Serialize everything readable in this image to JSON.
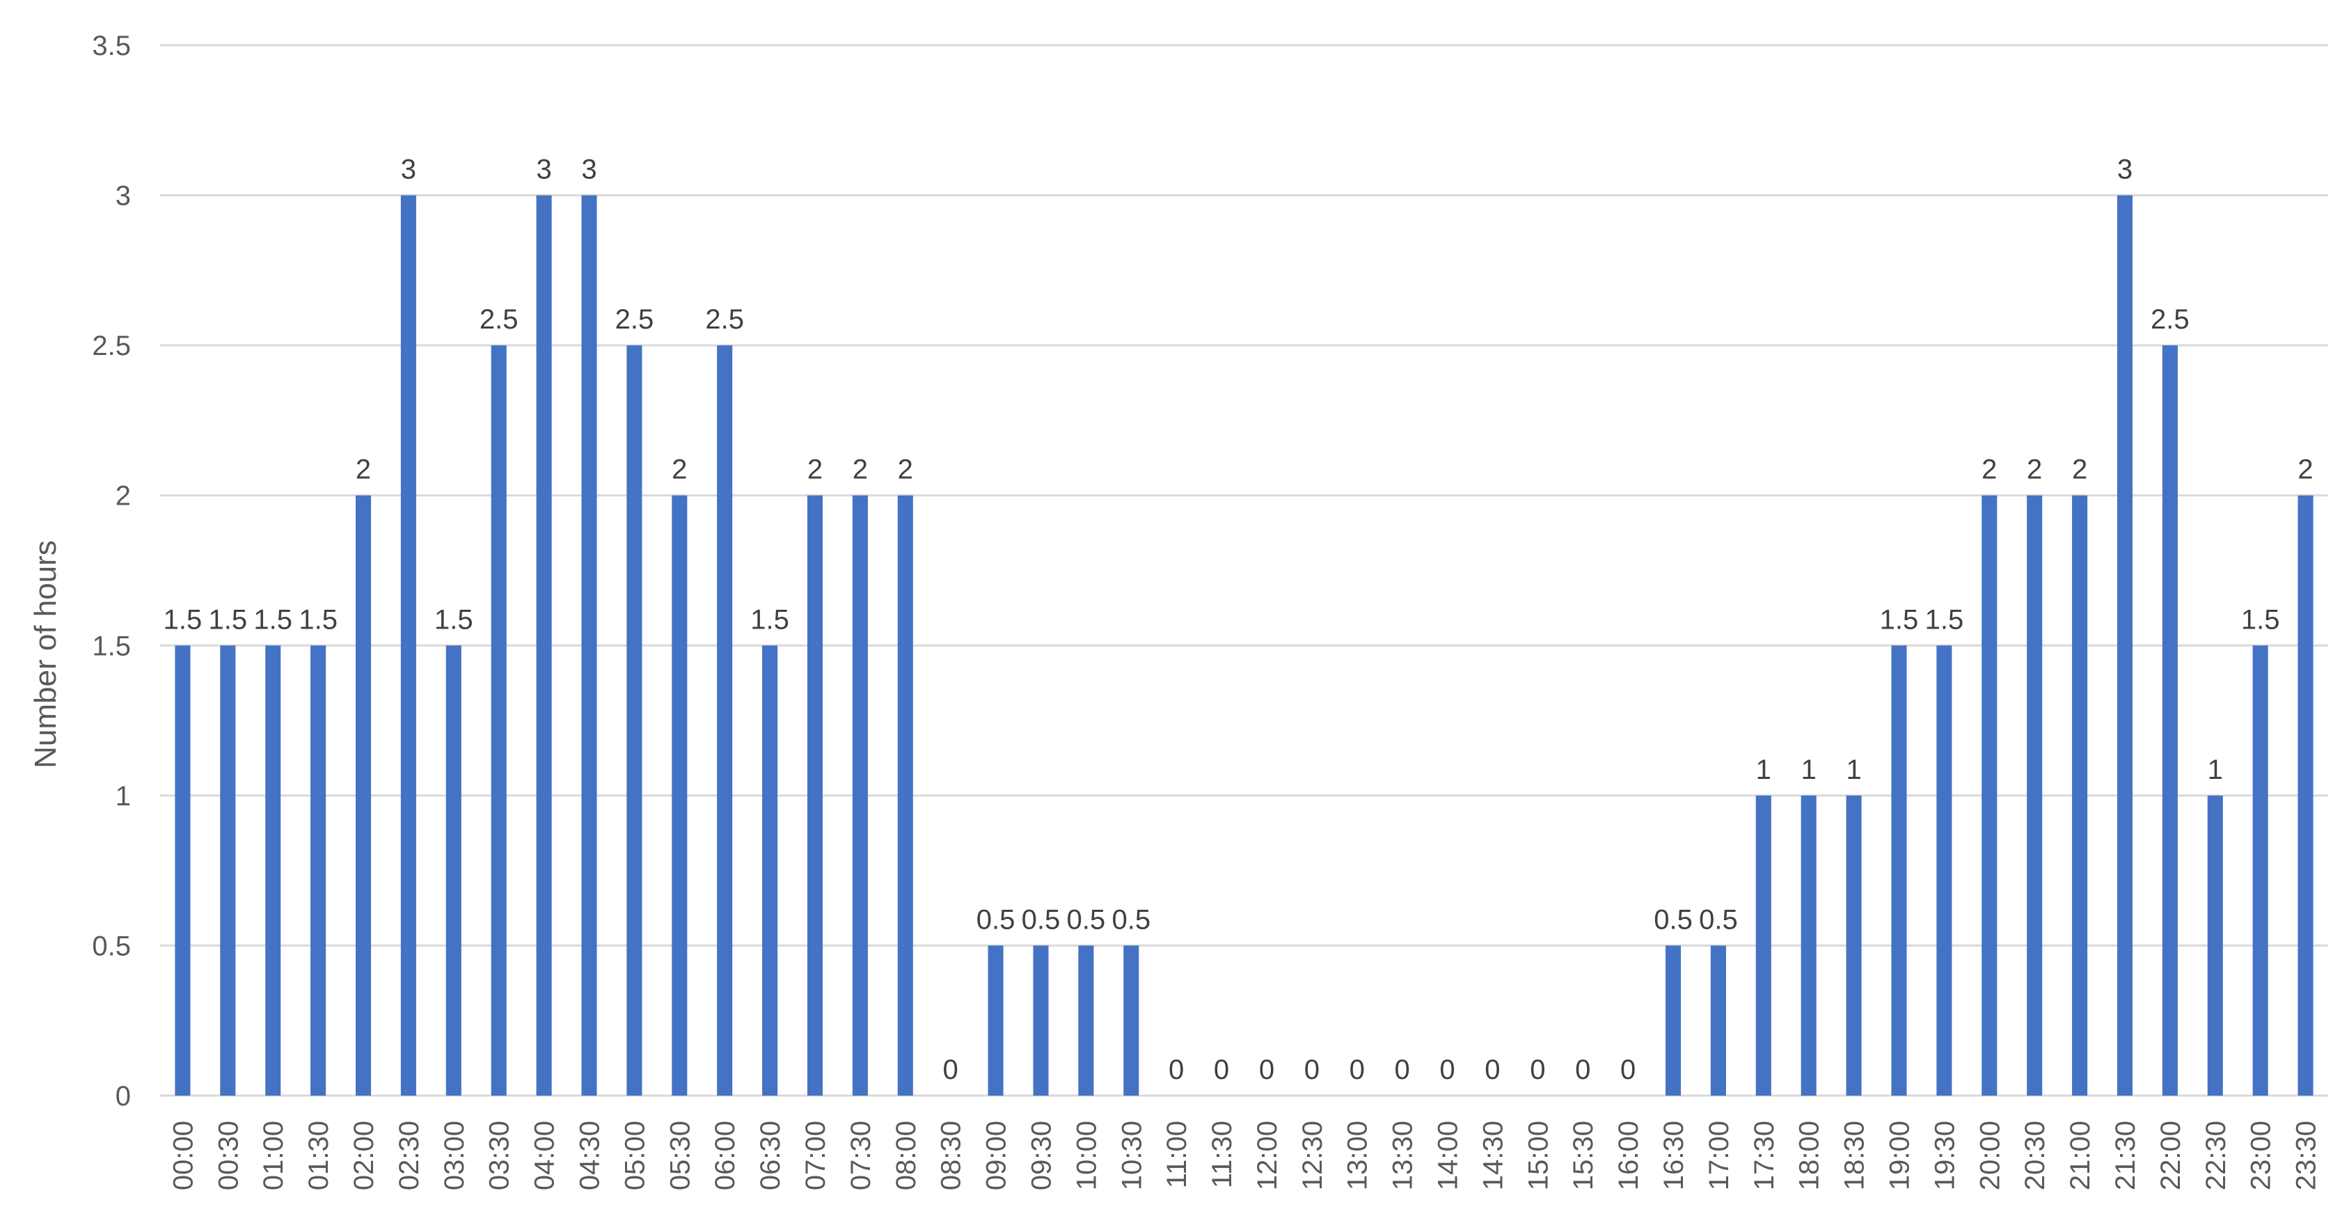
{
  "chart_data": {
    "type": "bar",
    "title": "",
    "xlabel": "",
    "ylabel": "Number of hours",
    "ylim": [
      0,
      3.5
    ],
    "yticks": [
      "0",
      "0.5",
      "1",
      "1.5",
      "2",
      "2.5",
      "3",
      "3.5"
    ],
    "grid": true,
    "legend": "none",
    "bar_color": "#4472C4",
    "categories": [
      "00:00",
      "00:30",
      "01:00",
      "01:30",
      "02:00",
      "02:30",
      "03:00",
      "03:30",
      "04:00",
      "04:30",
      "05:00",
      "05:30",
      "06:00",
      "06:30",
      "07:00",
      "07:30",
      "08:00",
      "08:30",
      "09:00",
      "09:30",
      "10:00",
      "10:30",
      "11:00",
      "11:30",
      "12:00",
      "12:30",
      "13:00",
      "13:30",
      "14:00",
      "14:30",
      "15:00",
      "15:30",
      "16:00",
      "16:30",
      "17:00",
      "17:30",
      "18:00",
      "18:30",
      "19:00",
      "19:30",
      "20:00",
      "20:30",
      "21:00",
      "21:30",
      "22:00",
      "22:30",
      "23:00",
      "23:30"
    ],
    "values": [
      1.5,
      1.5,
      1.5,
      1.5,
      2,
      3,
      1.5,
      2.5,
      3,
      3,
      2.5,
      2,
      2.5,
      1.5,
      2,
      2,
      2,
      0,
      0.5,
      0.5,
      0.5,
      0.5,
      0,
      0,
      0,
      0,
      0,
      0,
      0,
      0,
      0,
      0,
      0,
      0.5,
      0.5,
      1,
      1,
      1,
      1.5,
      1.5,
      2,
      2,
      2,
      3,
      2.5,
      1,
      1.5,
      2
    ],
    "data_labels": [
      "1.5",
      "1.5",
      "1.5",
      "1.5",
      "2",
      "3",
      "1.5",
      "2.5",
      "3",
      "3",
      "2.5",
      "2",
      "2.5",
      "1.5",
      "2",
      "2",
      "2",
      "0",
      "0.5",
      "0.5",
      "0.5",
      "0.5",
      "0",
      "0",
      "0",
      "0",
      "0",
      "0",
      "0",
      "0",
      "0",
      "0",
      "0",
      "0.5",
      "0.5",
      "1",
      "1",
      "1",
      "1.5",
      "1.5",
      "2",
      "2",
      "2",
      "3",
      "2.5",
      "1",
      "1.5",
      "2"
    ]
  }
}
